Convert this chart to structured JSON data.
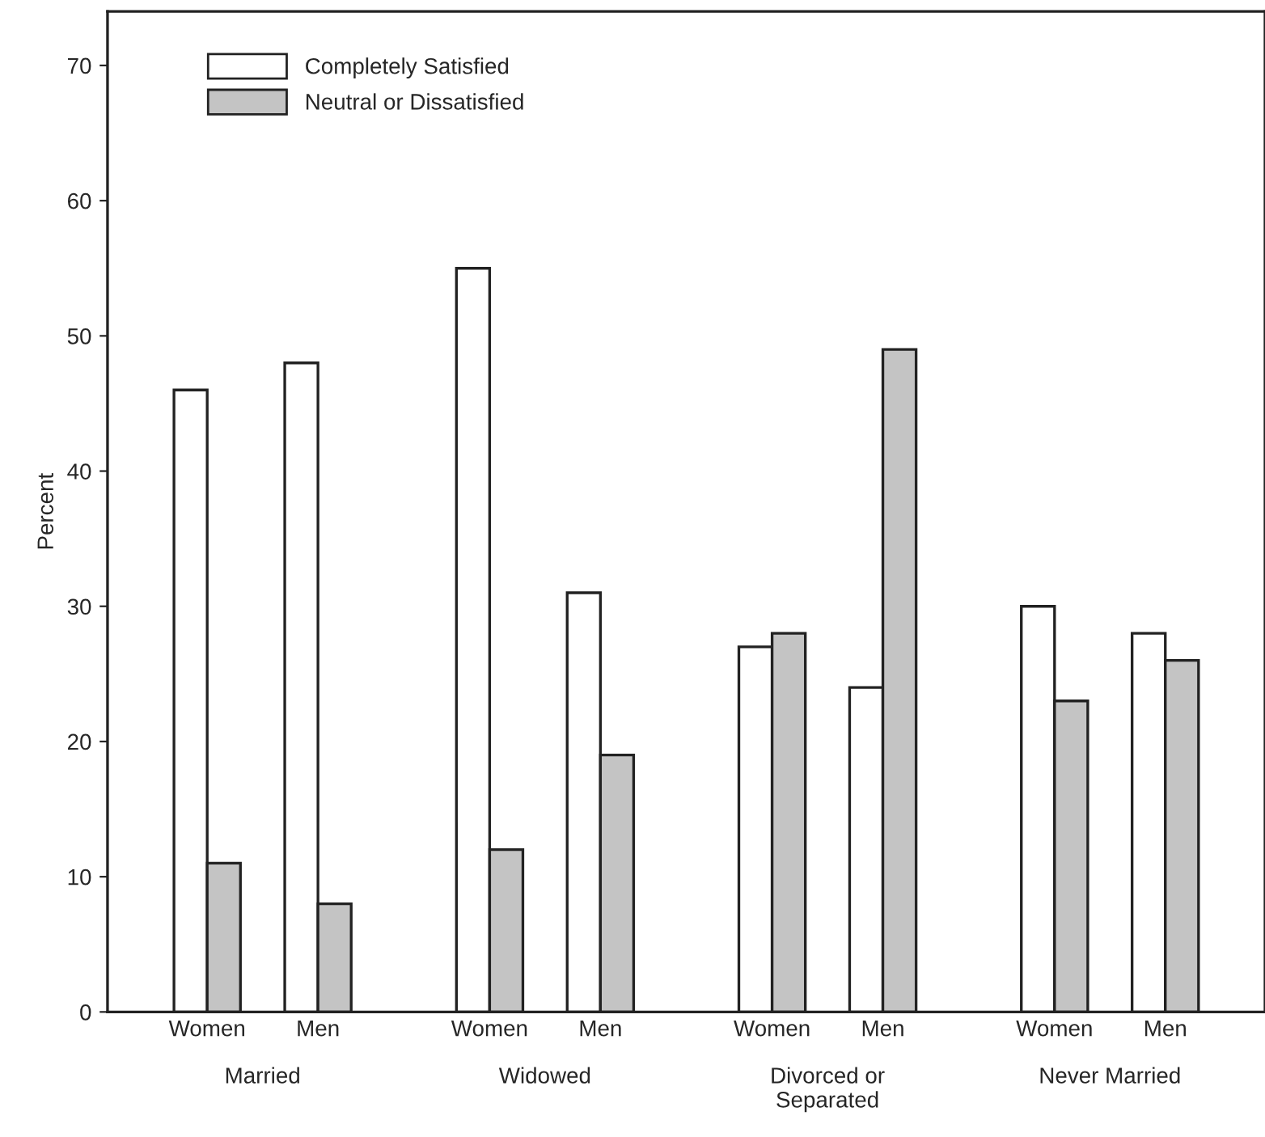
{
  "chart_data": {
    "type": "bar",
    "ylabel": "Percent",
    "categories": [
      "Women",
      "Men",
      "Women",
      "Men",
      "Women",
      "Men",
      "Women",
      "Men"
    ],
    "series": [
      {
        "name": "Completely Satisfied",
        "color": "#ffffff",
        "values": [
          46,
          48,
          55,
          31,
          27,
          24,
          30,
          28
        ]
      },
      {
        "name": "Neutral or Dissatisfied",
        "color": "#c4c4c4",
        "values": [
          11,
          8,
          12,
          19,
          28,
          49,
          23,
          26
        ]
      }
    ],
    "annotations": [
      "Married",
      "Widowed",
      "Divorced or\nSeparated",
      "Never Married"
    ],
    "ylim": [
      0,
      74
    ],
    "yticks": [
      0,
      10,
      20,
      30,
      40,
      50,
      60,
      70
    ],
    "grid": false,
    "legend": "top left"
  }
}
